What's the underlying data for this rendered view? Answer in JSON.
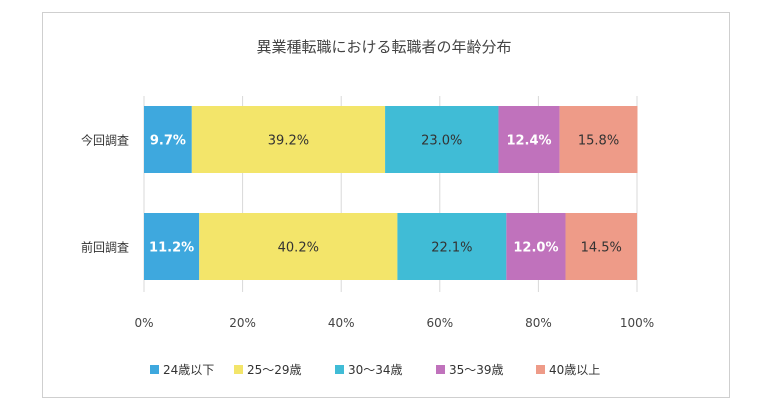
{
  "chart_data": {
    "type": "bar",
    "orientation": "horizontal",
    "stacked": true,
    "percent_stacked": true,
    "title": "異業種転職における転職者の年齢分布",
    "categories": [
      "今回調査",
      "前回調査"
    ],
    "series": [
      {
        "name": "24歳以下",
        "color": "#3ea8de",
        "values": [
          9.7,
          11.2
        ],
        "labels": [
          "9.7%",
          "11.2%"
        ]
      },
      {
        "name": "25～29歳",
        "color": "#f3e56a",
        "values": [
          39.2,
          40.2
        ],
        "labels": [
          "39.2%",
          "40.2%"
        ]
      },
      {
        "name": "30～34歳",
        "color": "#40bcd6",
        "values": [
          23.0,
          22.1
        ],
        "labels": [
          "23.0%",
          "22.1%"
        ]
      },
      {
        "name": "35～39歳",
        "color": "#c072bc",
        "values": [
          12.4,
          12.0
        ],
        "labels": [
          "12.4%",
          "12.0%"
        ]
      },
      {
        "name": "40歳以上",
        "color": "#ee9b88",
        "values": [
          15.8,
          14.5
        ],
        "labels": [
          "15.8%",
          "14.5%"
        ]
      }
    ],
    "xlim": [
      0,
      100
    ],
    "xticks": [
      "0%",
      "20%",
      "40%",
      "60%",
      "80%",
      "100%"
    ],
    "grid": true,
    "legend": "bottom"
  }
}
